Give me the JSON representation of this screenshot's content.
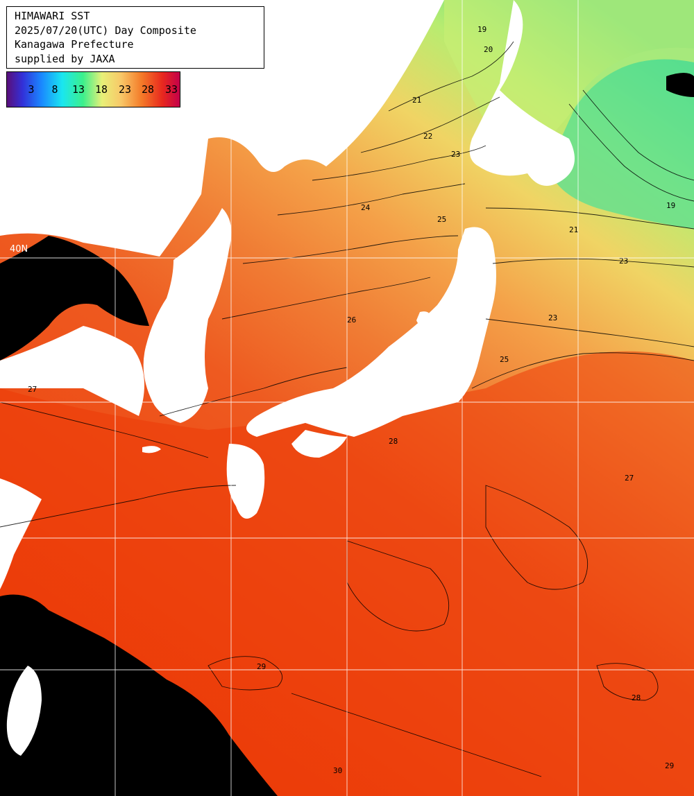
{
  "title": {
    "line1": "HIMAWARI SST",
    "line2": "2025/07/20(UTC) Day Composite",
    "line3": "Kanagawa Prefecture",
    "line4": "supplied by JAXA"
  },
  "legend": {
    "labels": [
      "3",
      "8",
      "13",
      "18",
      "23",
      "28",
      "33"
    ],
    "colors": [
      "#5a0f7a",
      "#1a88ff",
      "#1ae6f0",
      "#3cf08c",
      "#e8f078",
      "#f8c868",
      "#f47a28",
      "#e8281e",
      "#c4004a"
    ]
  },
  "grid": {
    "lat_label": "40N",
    "color": "#ffffff"
  },
  "colors": {
    "land": "#ffffff",
    "cloud": "#000000",
    "sea_warm": "#ee3300",
    "sea_mid": "#f07a2a",
    "sea_cool": "#f4d060",
    "sea_cold": "#7ce09a"
  },
  "contour_labels": [
    "19",
    "20",
    "21",
    "22",
    "23",
    "24",
    "25",
    "26",
    "27",
    "28",
    "29",
    "30"
  ]
}
